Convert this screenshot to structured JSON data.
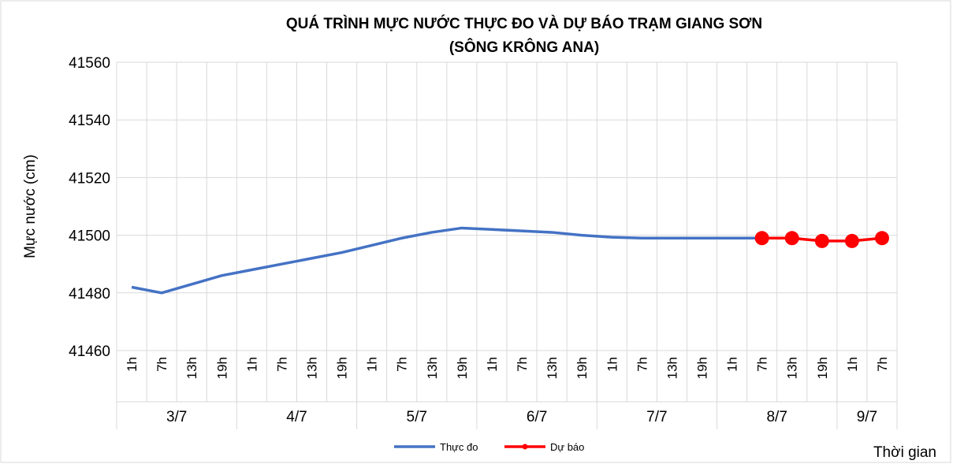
{
  "chart_data": {
    "type": "line",
    "title": "QUÁ TRÌNH MỰC NƯỚC THỰC ĐO VÀ DỰ BÁO TRẠM GIANG SƠN",
    "subtitle": "(SÔNG KRÔNG ANA)",
    "y_label": "Mực nước (cm)",
    "x_label": "Thời gian",
    "groups": [
      {
        "label": "3/7",
        "hours": [
          "1h",
          "7h",
          "13h",
          "19h"
        ]
      },
      {
        "label": "4/7",
        "hours": [
          "1h",
          "7h",
          "13h",
          "19h"
        ]
      },
      {
        "label": "5/7",
        "hours": [
          "1h",
          "7h",
          "13h",
          "19h"
        ]
      },
      {
        "label": "6/7",
        "hours": [
          "1h",
          "7h",
          "13h",
          "19h"
        ]
      },
      {
        "label": "7/7",
        "hours": [
          "1h",
          "7h",
          "13h",
          "19h"
        ]
      },
      {
        "label": "8/7",
        "hours": [
          "1h",
          "7h",
          "13h",
          "19h"
        ]
      },
      {
        "label": "9/7",
        "hours": [
          "1h",
          "7h"
        ]
      }
    ],
    "series": [
      {
        "name": "Thực đo",
        "color": "#4472c4",
        "markers": false,
        "values": [
          41482,
          41480,
          41483,
          41486,
          41488,
          41490,
          41492,
          41494,
          41496.5,
          41499,
          41501,
          41502.5,
          41502,
          41501.5,
          41501,
          41500,
          41499.3,
          41499,
          41499,
          41499,
          41499,
          41499,
          null,
          null,
          null,
          null
        ]
      },
      {
        "name": "Dự báo",
        "color": "#ff0000",
        "markers": true,
        "values": [
          null,
          null,
          null,
          null,
          null,
          null,
          null,
          null,
          null,
          null,
          null,
          null,
          null,
          null,
          null,
          null,
          null,
          null,
          null,
          null,
          null,
          41499,
          41499,
          41498,
          41498,
          41499
        ]
      }
    ],
    "ylim": [
      41460,
      41560
    ],
    "yticks": [
      41460,
      41480,
      41500,
      41520,
      41540,
      41560
    ],
    "grid": true
  }
}
